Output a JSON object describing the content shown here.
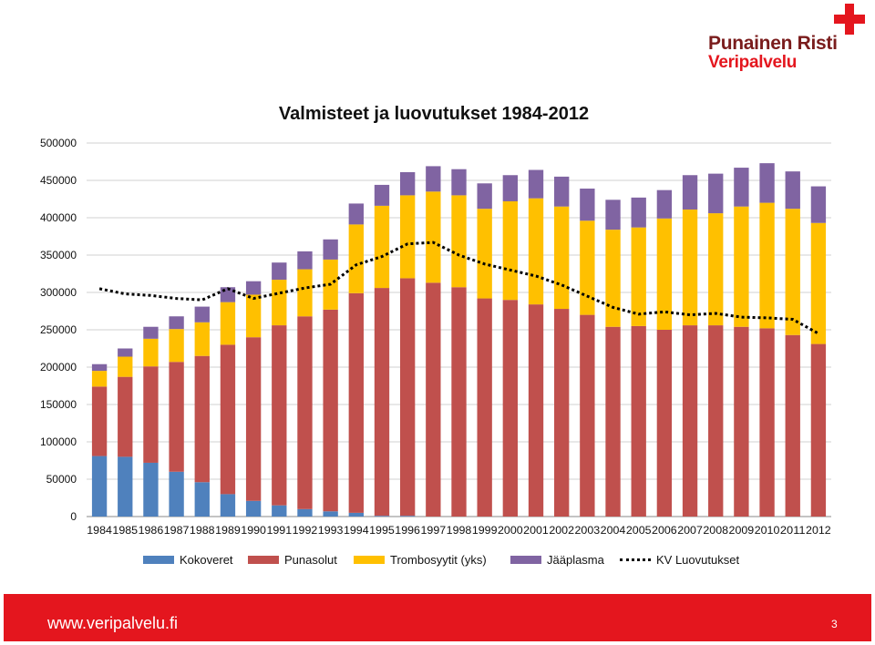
{
  "logo": {
    "name": "Punainen Risti",
    "sub": "Veripalvelu"
  },
  "chart_data": {
    "type": "bar",
    "stacked": true,
    "title": "Valmisteet ja luovutukset 1984-2012",
    "xlabel": "",
    "ylabel": "",
    "ylim": [
      0,
      500000
    ],
    "yticks": [
      0,
      50000,
      100000,
      150000,
      200000,
      250000,
      300000,
      350000,
      400000,
      450000,
      500000
    ],
    "grid": true,
    "legend_position": "bottom",
    "categories": [
      "1984",
      "1985",
      "1986",
      "1987",
      "1988",
      "1989",
      "1990",
      "1991",
      "1992",
      "1993",
      "1994",
      "1995",
      "1996",
      "1997",
      "1998",
      "1999",
      "2000",
      "2001",
      "2002",
      "2003",
      "2004",
      "2005",
      "2006",
      "2007",
      "2008",
      "2009",
      "2010",
      "2011",
      "2012"
    ],
    "series": [
      {
        "name": "Kokoveret",
        "type": "bar",
        "color": "#4f81bd",
        "values": [
          81000,
          80000,
          72000,
          60000,
          46000,
          30000,
          21000,
          15000,
          10000,
          7000,
          5000,
          1000,
          1000,
          0,
          0,
          0,
          0,
          0,
          0,
          0,
          0,
          0,
          0,
          0,
          0,
          0,
          0,
          0,
          0
        ]
      },
      {
        "name": "Punasolut",
        "type": "bar",
        "color": "#c0504d",
        "values": [
          93000,
          107000,
          129000,
          147000,
          169000,
          200000,
          219000,
          241000,
          258000,
          270000,
          294000,
          305000,
          318000,
          313000,
          307000,
          292000,
          290000,
          284000,
          278000,
          270000,
          254000,
          255000,
          250000,
          256000,
          256000,
          254000,
          252000,
          243000,
          231000
        ]
      },
      {
        "name": "Trombosyytit (yks)",
        "type": "bar",
        "color": "#ffc000",
        "values": [
          21000,
          27000,
          37000,
          44000,
          45000,
          57000,
          57000,
          61000,
          63000,
          67000,
          92000,
          110000,
          111000,
          122000,
          123000,
          120000,
          132000,
          142000,
          137000,
          126000,
          130000,
          132000,
          149000,
          155000,
          150000,
          161000,
          168000,
          169000,
          162000
        ]
      },
      {
        "name": "Jääplasma",
        "type": "bar",
        "color": "#8064a2",
        "values": [
          9000,
          11000,
          16000,
          17000,
          21000,
          20000,
          18000,
          23000,
          24000,
          27000,
          28000,
          28000,
          31000,
          34000,
          35000,
          34000,
          35000,
          38000,
          40000,
          43000,
          40000,
          40000,
          38000,
          46000,
          53000,
          52000,
          53000,
          50000,
          49000
        ]
      },
      {
        "name": "KV Luovutukset",
        "type": "line",
        "style": "dotted",
        "color": "#000000",
        "values": [
          305000,
          298000,
          296000,
          292000,
          290000,
          305000,
          292000,
          299000,
          306000,
          311000,
          337000,
          348000,
          365000,
          367000,
          350000,
          338000,
          330000,
          322000,
          310000,
          295000,
          280000,
          271000,
          274000,
          270000,
          272000,
          267000,
          266000,
          264000,
          245000
        ]
      }
    ]
  },
  "footer": {
    "url": "www.veripalvelu.fi",
    "page": "3"
  }
}
